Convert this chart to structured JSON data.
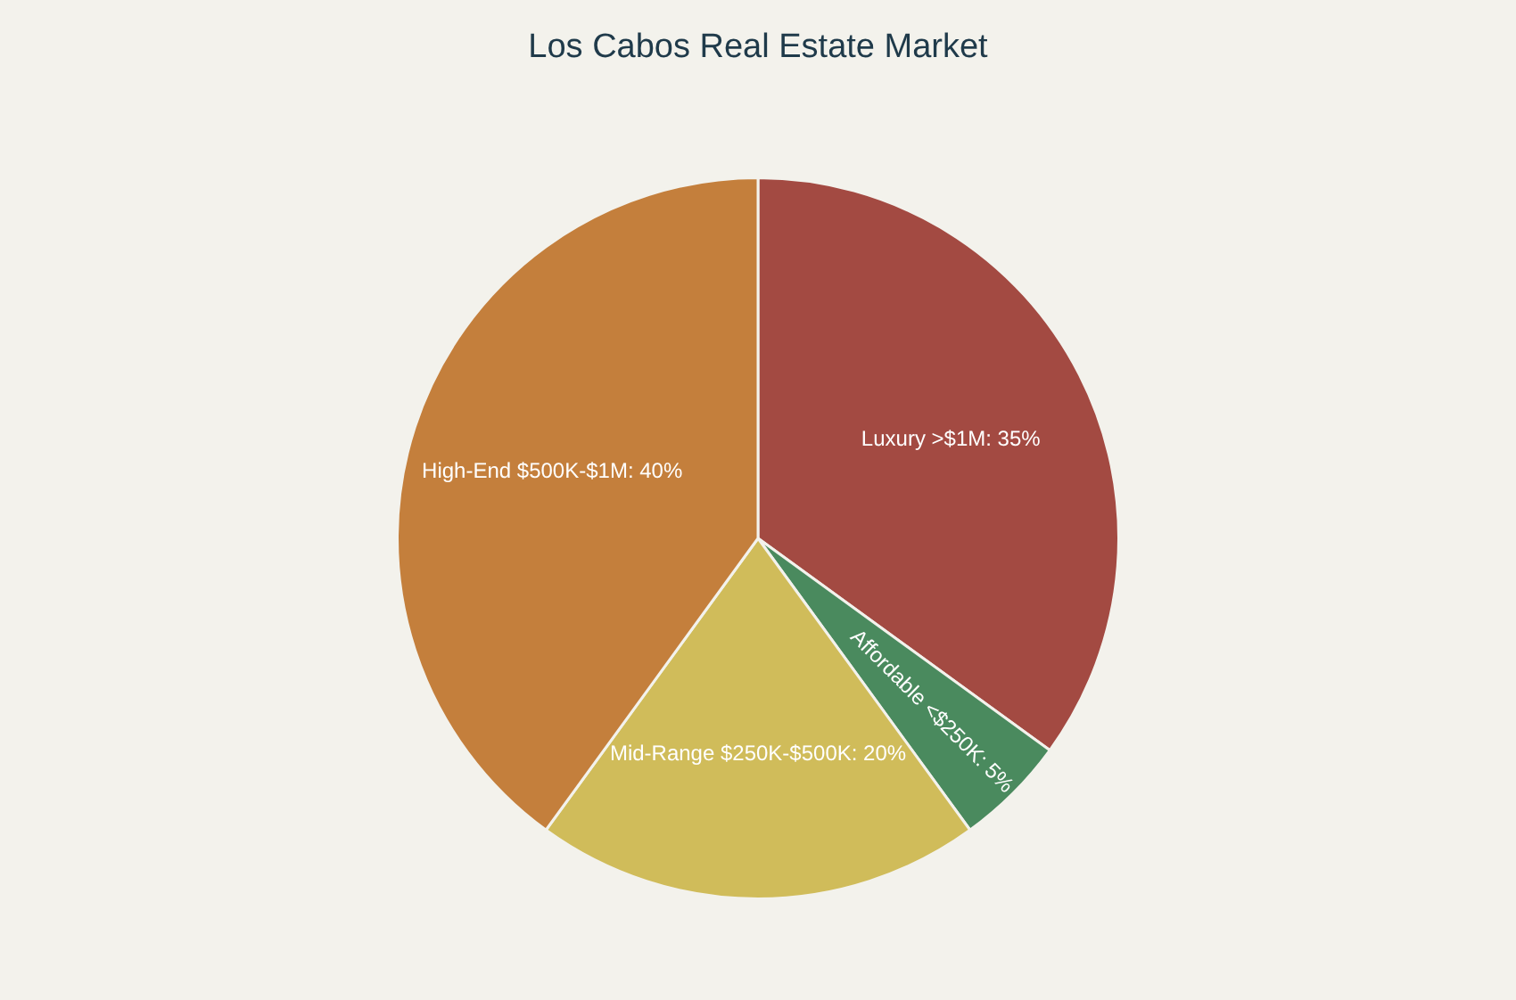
{
  "chart_data": {
    "type": "pie",
    "title": "Los Cabos Real Estate Market",
    "categories": [
      "Luxury >$1M",
      "Affordable <$250K",
      "Mid-Range $250K-$500K",
      "High-End $500K-$1M"
    ],
    "values": [
      35,
      5,
      20,
      40
    ],
    "colors": [
      "#a34a42",
      "#4a8a5e",
      "#d0bc5a",
      "#c47f3c"
    ],
    "value_labels": [
      "35%",
      "5%",
      "20%",
      "40%"
    ],
    "legend": false
  }
}
